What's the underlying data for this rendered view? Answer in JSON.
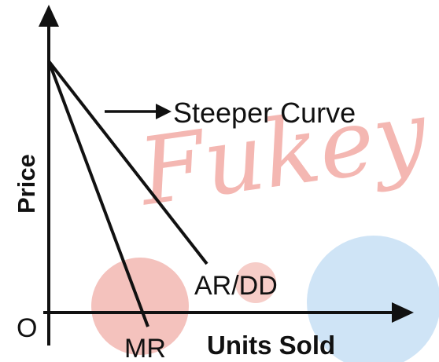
{
  "diagram": {
    "watermark_text": "Fukey",
    "origin_label": "O",
    "y_axis_label": "Price",
    "x_axis_label": "Units Sold",
    "ar_dd_label": "AR/DD",
    "mr_label": "MR",
    "annotation_label": "Steeper Curve"
  },
  "colors": {
    "line": "#111111",
    "watermark_pink": "#f4b7b2",
    "watermark_blue": "#cfe4f6",
    "background": "#ffffff"
  }
}
